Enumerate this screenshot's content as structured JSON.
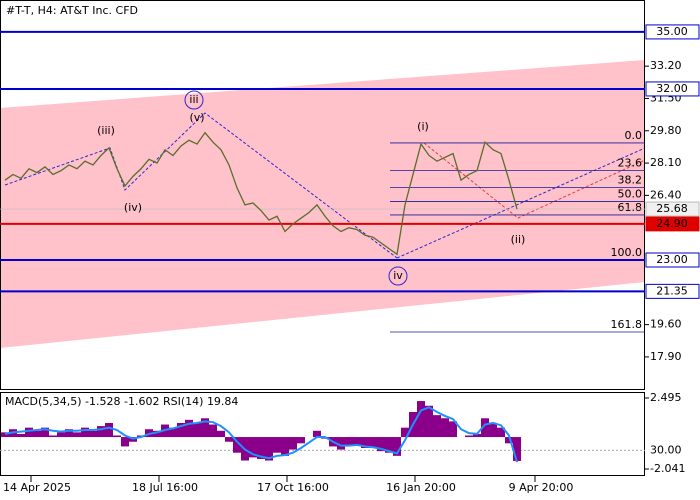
{
  "header": "#T-T, H4:  AT&T Inc. CFD",
  "chart_data": [
    {
      "type": "line",
      "categories": [
        null,
        null,
        null,
        null,
        "14 Apr 2025",
        null,
        null,
        null,
        null,
        null,
        null,
        null,
        null,
        null,
        null,
        null,
        null,
        null,
        null,
        null,
        "18 Jul 16:00",
        null,
        null,
        null,
        null,
        null,
        null,
        null,
        null,
        null,
        null,
        null,
        null,
        null,
        null,
        null,
        "17 Oct 16:00",
        null,
        null,
        null,
        null,
        null,
        null,
        null,
        null,
        null,
        null,
        null,
        null,
        null,
        null,
        null,
        "16 Jan 20:00",
        null,
        null,
        null,
        null,
        null,
        null,
        null,
        null,
        null,
        null,
        null,
        null,
        null,
        null,
        "9 Apr 20:00",
        null,
        null
      ],
      "values": [
        27.2,
        27.5,
        27.3,
        27.8,
        27.6,
        27.9,
        27.5,
        27.7,
        28.0,
        27.8,
        28.2,
        28.0,
        28.5,
        28.9,
        27.8,
        26.9,
        27.4,
        27.8,
        28.3,
        28.1,
        28.8,
        28.5,
        29.0,
        29.3,
        29.1,
        29.7,
        29.2,
        28.8,
        28.0,
        26.8,
        25.9,
        26.0,
        25.6,
        25.1,
        25.3,
        24.5,
        24.9,
        25.2,
        25.5,
        25.9,
        25.3,
        24.8,
        24.5,
        24.7,
        24.6,
        24.3,
        24.2,
        23.9,
        23.6,
        23.3,
        25.9,
        27.5,
        29.1,
        28.5,
        28.2,
        28.4,
        28.6,
        27.2,
        27.5,
        27.7,
        29.2,
        28.8,
        28.6,
        27.2,
        25.68,
        null,
        null,
        null,
        null,
        null
      ],
      "color": "#5a6e2a",
      "ylim": [
        16.16,
        36.68
      ],
      "yticks": [
        {
          "value": 33.2,
          "label": "33.20"
        },
        {
          "value": 31.5,
          "label": "31.50"
        },
        {
          "value": 29.8,
          "label": "29.80"
        },
        {
          "value": 28.1,
          "label": "28.10"
        },
        {
          "value": 26.4,
          "label": "26.40"
        },
        {
          "value": 19.6,
          "label": "19.60"
        },
        {
          "value": 17.9,
          "label": "17.90"
        }
      ],
      "hlines": [
        {
          "value": 35,
          "label": "35.00",
          "color": "#0000cc"
        },
        {
          "value": 32,
          "label": "32.00",
          "color": "#0000cc"
        },
        {
          "value": 24.9,
          "label": "24.90",
          "color": "#e00000"
        },
        {
          "value": 23,
          "label": "23.00",
          "color": "#0000cc"
        },
        {
          "value": 21.35,
          "label": "21.35",
          "color": "#0000cc"
        }
      ],
      "current_price": {
        "value": 25.68,
        "label": "25.68"
      },
      "fib": {
        "levels": [
          "0.0",
          "23.6",
          "38.2",
          "50.0",
          "61.8",
          "100.0",
          "161.8"
        ],
        "prices": [
          29.16,
          27.71,
          26.81,
          26.08,
          25.37,
          23.0,
          19.21
        ],
        "color": "#1a1a99"
      },
      "annotations": [
        "(iii)",
        "(iv)",
        "(v)",
        "iii",
        "(i)",
        "(ii)",
        "iv"
      ]
    },
    {
      "type": "bar",
      "label": "MACD(5,34,5)",
      "macd": -1.528,
      "signal": -1.602,
      "rsi_label": "RSI(14)",
      "rsi": 19.84,
      "values": [
        0.3,
        0.5,
        0.2,
        0.6,
        0.4,
        0.6,
        0.1,
        0.3,
        0.5,
        0.3,
        0.6,
        0.4,
        0.7,
        0.9,
        0.1,
        -0.6,
        -0.3,
        0.1,
        0.5,
        0.4,
        0.8,
        0.6,
        0.9,
        1.1,
        0.9,
        1.2,
        0.8,
        0.4,
        -0.3,
        -1.0,
        -1.5,
        -1.3,
        -1.4,
        -1.5,
        -1.0,
        -1.2,
        -0.8,
        -0.4,
        0.0,
        0.4,
        -0.1,
        -0.6,
        -0.8,
        -0.5,
        -0.5,
        -0.7,
        -0.7,
        -0.9,
        -1.0,
        -1.2,
        0.6,
        1.6,
        2.3,
        2.0,
        1.4,
        1.2,
        1.0,
        0.0,
        0.1,
        0.2,
        1.2,
        0.9,
        0.6,
        -0.4,
        -1.528,
        null,
        null,
        null,
        null,
        null
      ],
      "color": "#8b008b",
      "signal_values": [
        0.2,
        0.3,
        0.35,
        0.4,
        0.45,
        0.5,
        0.4,
        0.35,
        0.4,
        0.4,
        0.45,
        0.45,
        0.5,
        0.6,
        0.45,
        0.1,
        -0.1,
        0.0,
        0.2,
        0.3,
        0.45,
        0.55,
        0.7,
        0.85,
        0.9,
        1.0,
        0.95,
        0.7,
        0.3,
        -0.3,
        -0.8,
        -1.1,
        -1.25,
        -1.35,
        -1.2,
        -1.15,
        -1.0,
        -0.7,
        -0.35,
        0.0,
        0.0,
        -0.3,
        -0.55,
        -0.55,
        -0.5,
        -0.6,
        -0.65,
        -0.75,
        -0.9,
        -1.05,
        -0.2,
        0.8,
        1.7,
        1.9,
        1.6,
        1.35,
        1.15,
        0.5,
        0.25,
        0.2,
        0.8,
        0.9,
        0.75,
        0.1,
        -1.602,
        null,
        null,
        null,
        null,
        null
      ],
      "signal_color": "#1e90ff",
      "ylim": [
        -2.424,
        2.814
      ],
      "yticks": [
        2.495,
        -2.041
      ],
      "y2lim": [
        0,
        100
      ],
      "y2ticks": [
        {
          "value": 30,
          "label": "30.00"
        }
      ]
    }
  ]
}
